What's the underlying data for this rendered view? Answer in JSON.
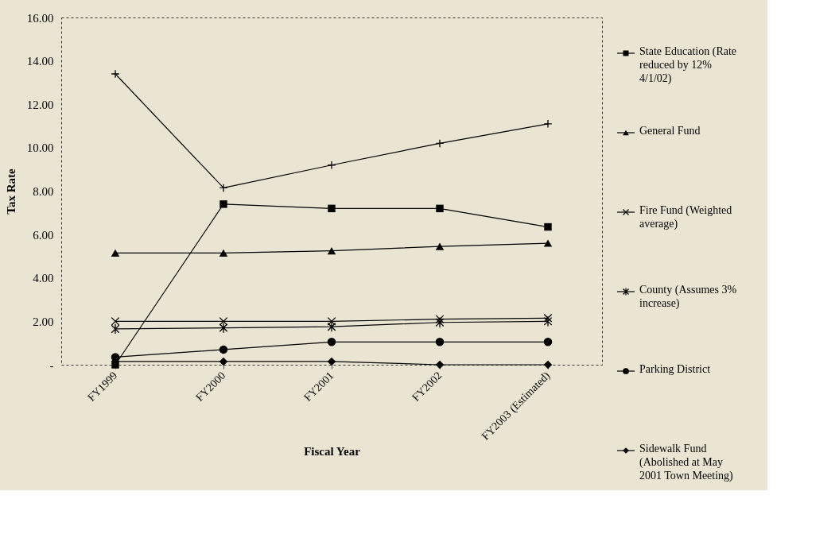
{
  "chart_data": {
    "type": "line",
    "xlabel": "Fiscal Year",
    "ylabel": "Tax Rate",
    "categories": [
      "FY1999",
      "FY2000",
      "FY2001",
      "FY2002",
      "FY2003 (Estimated)"
    ],
    "ylim": [
      0,
      16
    ],
    "yticks": [
      {
        "value": 0,
        "label": "-"
      },
      {
        "value": 2,
        "label": "2.00"
      },
      {
        "value": 4,
        "label": "4.00"
      },
      {
        "value": 6,
        "label": "6.00"
      },
      {
        "value": 8,
        "label": "8.00"
      },
      {
        "value": 10,
        "label": "10.00"
      },
      {
        "value": 12,
        "label": "12.00"
      },
      {
        "value": 14,
        "label": "14.00"
      },
      {
        "value": 16,
        "label": "16.00"
      }
    ],
    "grid": false,
    "legend": "right",
    "line_style": "solid",
    "series": [
      {
        "name": "State Education (Rate reduced by 12% 4/1/02)",
        "color": "#000000",
        "marker": "square",
        "values": [
          0.0,
          7.4,
          7.2,
          7.2,
          6.35
        ]
      },
      {
        "name": "General Fund",
        "color": "#000000",
        "marker": "triangle",
        "values": [
          5.15,
          5.15,
          5.25,
          5.45,
          5.6
        ]
      },
      {
        "name": "Fire Fund (Weighted average)",
        "color": "#000000",
        "marker": "cross",
        "values": [
          2.0,
          2.0,
          2.0,
          2.1,
          2.15
        ]
      },
      {
        "name": "County (Assumes 3% increase)",
        "color": "#000000",
        "marker": "cross",
        "values": [
          1.65,
          1.7,
          1.75,
          1.95,
          2.0
        ]
      },
      {
        "name": "Parking District",
        "color": "#000000",
        "marker": "circle",
        "values": [
          0.35,
          0.7,
          1.05,
          1.05,
          1.05
        ]
      },
      {
        "name": "Sidewalk Fund (Abolished at May 2001 Town Meeting)",
        "color": "#000000",
        "marker": "diamond",
        "values": [
          0.15,
          0.15,
          0.15,
          0.0,
          0.0
        ]
      },
      {
        "color": "#000000",
        "marker": "plus",
        "values": [
          13.4,
          8.15,
          9.2,
          10.2,
          11.1
        ]
      }
    ]
  }
}
